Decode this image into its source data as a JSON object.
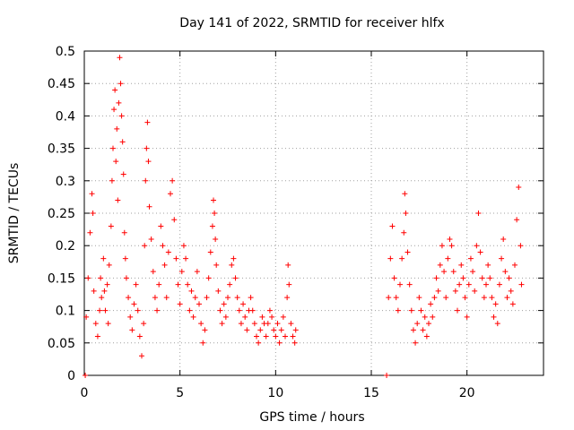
{
  "chart_data": {
    "type": "scatter",
    "title": "Day 141 of 2022, SRMTID for receiver hlfx",
    "xlabel": "GPS time / hours",
    "ylabel": "SRMTID / TECUs",
    "xlim": [
      0,
      24
    ],
    "ylim": [
      0,
      0.5
    ],
    "xticks": [
      0,
      5,
      10,
      15,
      20
    ],
    "xtick_labels": [
      "0",
      "5",
      "10",
      "15",
      "20"
    ],
    "yticks": [
      0,
      0.05,
      0.1,
      0.15,
      0.2,
      0.25,
      0.3,
      0.35,
      0.4,
      0.45,
      0.5
    ],
    "ytick_labels": [
      "0",
      "0.05",
      "0.1",
      "0.15",
      "0.2",
      "0.25",
      "0.3",
      "0.35",
      "0.4",
      "0.45",
      "0.5"
    ],
    "grid": true,
    "marker": "plus",
    "color": "#ff0000",
    "series": [
      {
        "points": [
          [
            0.05,
            0.0
          ],
          [
            0.1,
            0.09
          ],
          [
            0.2,
            0.15
          ],
          [
            0.3,
            0.22
          ],
          [
            0.4,
            0.28
          ],
          [
            0.45,
            0.25
          ],
          [
            0.5,
            0.13
          ],
          [
            0.6,
            0.08
          ],
          [
            0.7,
            0.06
          ],
          [
            0.8,
            0.1
          ],
          [
            0.85,
            0.15
          ],
          [
            0.9,
            0.12
          ],
          [
            1.0,
            0.18
          ],
          [
            1.05,
            0.13
          ],
          [
            1.1,
            0.1
          ],
          [
            1.2,
            0.14
          ],
          [
            1.25,
            0.08
          ],
          [
            1.3,
            0.17
          ],
          [
            1.4,
            0.23
          ],
          [
            1.45,
            0.3
          ],
          [
            1.5,
            0.35
          ],
          [
            1.55,
            0.41
          ],
          [
            1.6,
            0.44
          ],
          [
            1.65,
            0.33
          ],
          [
            1.7,
            0.38
          ],
          [
            1.75,
            0.27
          ],
          [
            1.8,
            0.42
          ],
          [
            1.85,
            0.49
          ],
          [
            1.9,
            0.45
          ],
          [
            1.95,
            0.4
          ],
          [
            2.0,
            0.36
          ],
          [
            2.05,
            0.31
          ],
          [
            2.1,
            0.22
          ],
          [
            2.15,
            0.18
          ],
          [
            2.2,
            0.15
          ],
          [
            2.3,
            0.12
          ],
          [
            2.4,
            0.09
          ],
          [
            2.5,
            0.07
          ],
          [
            2.6,
            0.11
          ],
          [
            2.7,
            0.14
          ],
          [
            2.8,
            0.1
          ],
          [
            2.9,
            0.06
          ],
          [
            3.0,
            0.03
          ],
          [
            3.1,
            0.08
          ],
          [
            3.15,
            0.2
          ],
          [
            3.2,
            0.3
          ],
          [
            3.25,
            0.35
          ],
          [
            3.3,
            0.39
          ],
          [
            3.35,
            0.33
          ],
          [
            3.4,
            0.26
          ],
          [
            3.5,
            0.21
          ],
          [
            3.6,
            0.16
          ],
          [
            3.7,
            0.12
          ],
          [
            3.8,
            0.1
          ],
          [
            3.9,
            0.14
          ],
          [
            4.0,
            0.23
          ],
          [
            4.1,
            0.2
          ],
          [
            4.2,
            0.17
          ],
          [
            4.3,
            0.12
          ],
          [
            4.4,
            0.19
          ],
          [
            4.5,
            0.28
          ],
          [
            4.6,
            0.3
          ],
          [
            4.7,
            0.24
          ],
          [
            4.8,
            0.18
          ],
          [
            4.9,
            0.14
          ],
          [
            5.0,
            0.11
          ],
          [
            5.1,
            0.16
          ],
          [
            5.2,
            0.2
          ],
          [
            5.3,
            0.18
          ],
          [
            5.4,
            0.14
          ],
          [
            5.5,
            0.1
          ],
          [
            5.6,
            0.13
          ],
          [
            5.7,
            0.09
          ],
          [
            5.8,
            0.12
          ],
          [
            5.9,
            0.16
          ],
          [
            6.0,
            0.11
          ],
          [
            6.1,
            0.08
          ],
          [
            6.2,
            0.05
          ],
          [
            6.3,
            0.07
          ],
          [
            6.4,
            0.12
          ],
          [
            6.5,
            0.15
          ],
          [
            6.6,
            0.19
          ],
          [
            6.7,
            0.23
          ],
          [
            6.75,
            0.27
          ],
          [
            6.8,
            0.25
          ],
          [
            6.85,
            0.21
          ],
          [
            6.9,
            0.17
          ],
          [
            7.0,
            0.13
          ],
          [
            7.1,
            0.1
          ],
          [
            7.2,
            0.08
          ],
          [
            7.3,
            0.11
          ],
          [
            7.4,
            0.09
          ],
          [
            7.5,
            0.12
          ],
          [
            7.6,
            0.14
          ],
          [
            7.7,
            0.17
          ],
          [
            7.8,
            0.18
          ],
          [
            7.9,
            0.15
          ],
          [
            8.0,
            0.12
          ],
          [
            8.1,
            0.1
          ],
          [
            8.2,
            0.08
          ],
          [
            8.3,
            0.11
          ],
          [
            8.4,
            0.09
          ],
          [
            8.5,
            0.07
          ],
          [
            8.6,
            0.1
          ],
          [
            8.7,
            0.12
          ],
          [
            8.8,
            0.1
          ],
          [
            8.9,
            0.08
          ],
          [
            9.0,
            0.06
          ],
          [
            9.1,
            0.05
          ],
          [
            9.2,
            0.07
          ],
          [
            9.3,
            0.09
          ],
          [
            9.4,
            0.08
          ],
          [
            9.5,
            0.06
          ],
          [
            9.6,
            0.08
          ],
          [
            9.7,
            0.1
          ],
          [
            9.8,
            0.09
          ],
          [
            9.9,
            0.07
          ],
          [
            10.0,
            0.06
          ],
          [
            10.1,
            0.08
          ],
          [
            10.2,
            0.05
          ],
          [
            10.3,
            0.07
          ],
          [
            10.4,
            0.09
          ],
          [
            10.5,
            0.06
          ],
          [
            10.6,
            0.12
          ],
          [
            10.65,
            0.17
          ],
          [
            10.7,
            0.14
          ],
          [
            10.8,
            0.08
          ],
          [
            10.9,
            0.06
          ],
          [
            11.0,
            0.05
          ],
          [
            11.05,
            0.07
          ],
          [
            15.8,
            0.0
          ],
          [
            15.9,
            0.12
          ],
          [
            16.0,
            0.18
          ],
          [
            16.1,
            0.23
          ],
          [
            16.2,
            0.15
          ],
          [
            16.3,
            0.12
          ],
          [
            16.4,
            0.1
          ],
          [
            16.5,
            0.14
          ],
          [
            16.6,
            0.18
          ],
          [
            16.7,
            0.22
          ],
          [
            16.75,
            0.28
          ],
          [
            16.8,
            0.25
          ],
          [
            16.9,
            0.19
          ],
          [
            17.0,
            0.14
          ],
          [
            17.1,
            0.1
          ],
          [
            17.2,
            0.07
          ],
          [
            17.3,
            0.05
          ],
          [
            17.4,
            0.08
          ],
          [
            17.5,
            0.12
          ],
          [
            17.6,
            0.1
          ],
          [
            17.7,
            0.07
          ],
          [
            17.8,
            0.09
          ],
          [
            17.9,
            0.06
          ],
          [
            18.0,
            0.08
          ],
          [
            18.1,
            0.11
          ],
          [
            18.2,
            0.09
          ],
          [
            18.3,
            0.12
          ],
          [
            18.4,
            0.15
          ],
          [
            18.5,
            0.13
          ],
          [
            18.6,
            0.17
          ],
          [
            18.7,
            0.2
          ],
          [
            18.8,
            0.16
          ],
          [
            18.9,
            0.12
          ],
          [
            19.0,
            0.18
          ],
          [
            19.1,
            0.21
          ],
          [
            19.2,
            0.2
          ],
          [
            19.3,
            0.16
          ],
          [
            19.4,
            0.13
          ],
          [
            19.5,
            0.1
          ],
          [
            19.6,
            0.14
          ],
          [
            19.7,
            0.17
          ],
          [
            19.8,
            0.15
          ],
          [
            19.9,
            0.12
          ],
          [
            20.0,
            0.09
          ],
          [
            20.1,
            0.14
          ],
          [
            20.2,
            0.18
          ],
          [
            20.3,
            0.16
          ],
          [
            20.4,
            0.13
          ],
          [
            20.5,
            0.2
          ],
          [
            20.6,
            0.25
          ],
          [
            20.7,
            0.19
          ],
          [
            20.8,
            0.15
          ],
          [
            20.9,
            0.12
          ],
          [
            21.0,
            0.14
          ],
          [
            21.1,
            0.17
          ],
          [
            21.2,
            0.15
          ],
          [
            21.3,
            0.12
          ],
          [
            21.4,
            0.09
          ],
          [
            21.5,
            0.11
          ],
          [
            21.6,
            0.08
          ],
          [
            21.7,
            0.14
          ],
          [
            21.8,
            0.18
          ],
          [
            21.9,
            0.21
          ],
          [
            22.0,
            0.16
          ],
          [
            22.1,
            0.12
          ],
          [
            22.2,
            0.15
          ],
          [
            22.3,
            0.13
          ],
          [
            22.4,
            0.11
          ],
          [
            22.5,
            0.17
          ],
          [
            22.6,
            0.24
          ],
          [
            22.7,
            0.29
          ],
          [
            22.8,
            0.2
          ],
          [
            22.85,
            0.14
          ]
        ]
      }
    ]
  }
}
